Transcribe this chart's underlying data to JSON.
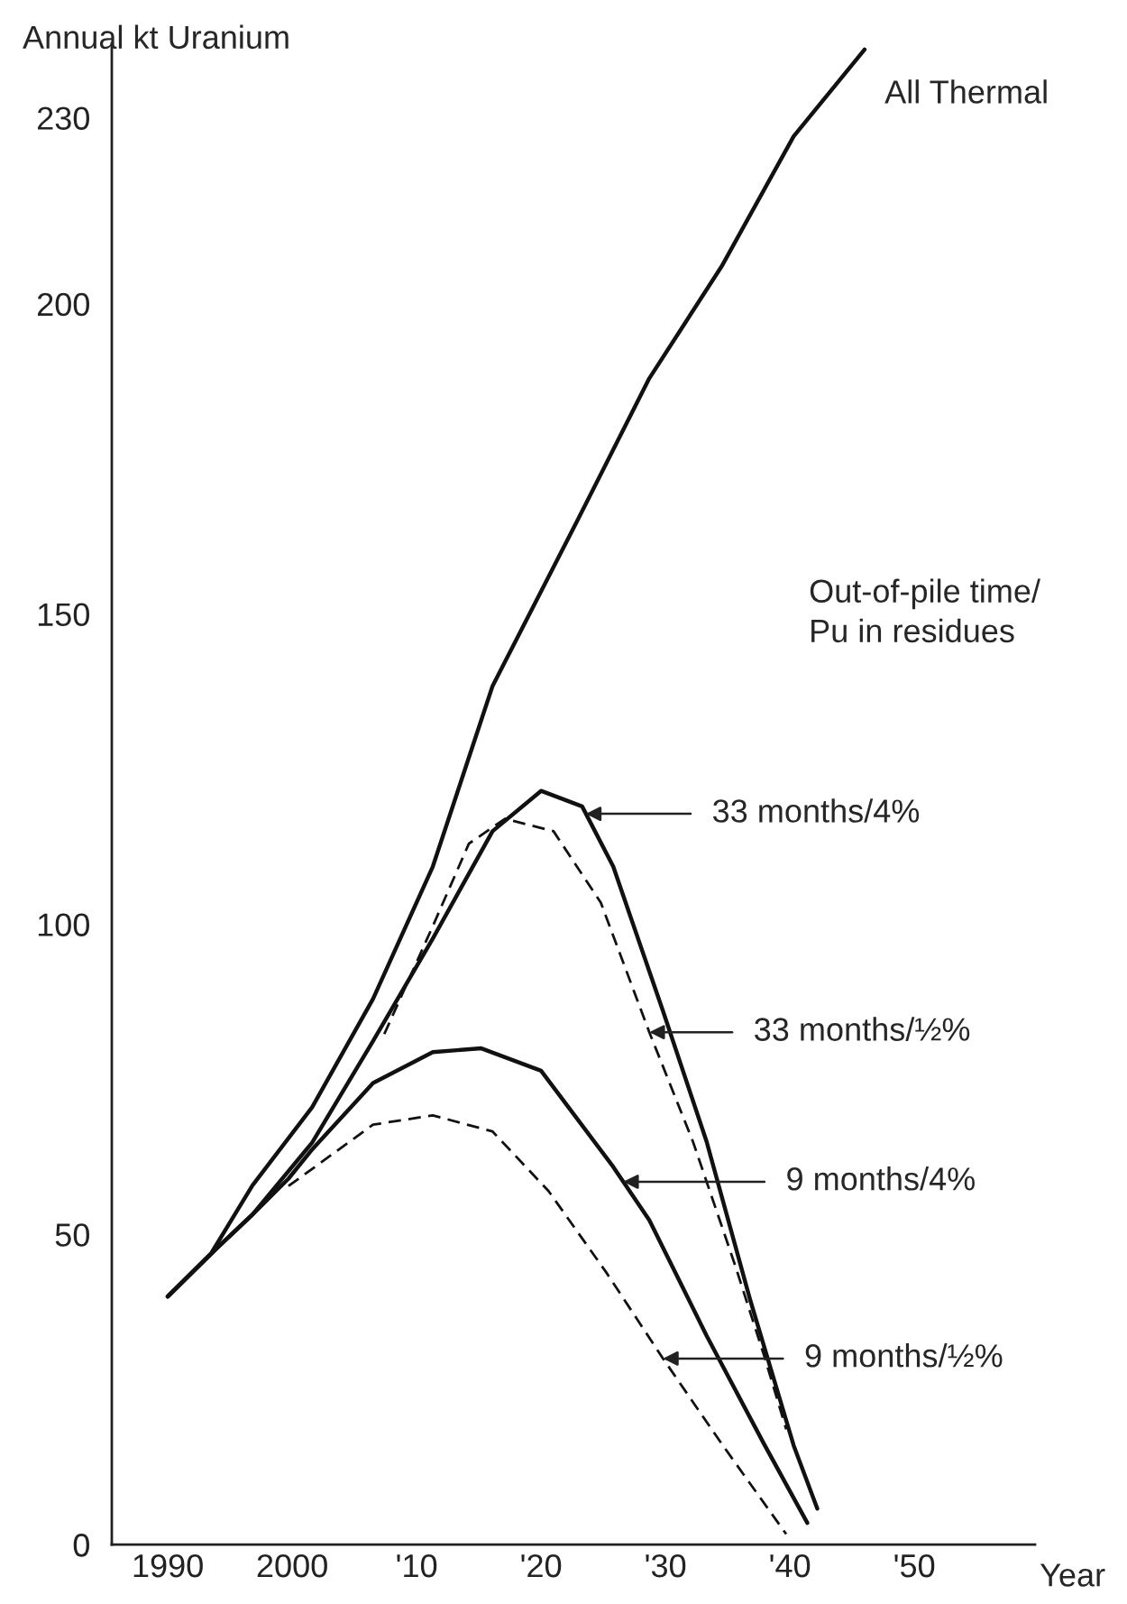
{
  "chart_data": {
    "type": "line",
    "ylabel": "Annual kt Uranium",
    "xlabel": "Year",
    "xlim": [
      1985.5,
      2059.7
    ],
    "ylim": [
      0,
      242
    ],
    "xticks": [
      1990,
      2000,
      {
        "value": 2010,
        "label": "'10"
      },
      {
        "value": 2020,
        "label": "'20"
      },
      {
        "value": 2030,
        "label": "'30"
      },
      {
        "value": 2040,
        "label": "'40"
      },
      {
        "value": 2050,
        "label": "'50"
      }
    ],
    "yticks": [
      0,
      50,
      100,
      150,
      200,
      230
    ],
    "grid": false,
    "legend": false,
    "series": [
      {
        "color": "#111111",
        "line_style": "solid",
        "x": [
          1990,
          1993.5,
          1996.8,
          2001.6,
          2006.5,
          2011.3,
          2016.1,
          2022.9,
          2028.7,
          2034.5,
          2040.3,
          2046
        ],
        "values": [
          40,
          47,
          57.9,
          70.5,
          88,
          109.3,
          138.4,
          165,
          188,
          206,
          227,
          241
        ]
      },
      {
        "color": "#111111",
        "line_style": "solid",
        "x": [
          1990,
          1993.9,
          1996.8,
          2001.6,
          2006.5,
          2011.3,
          2016.1,
          2020,
          2023.3,
          2025.8,
          2029.8,
          2033.3,
          2036.8,
          2040.3,
          2042.2
        ],
        "values": [
          40,
          47.7,
          53.2,
          64.8,
          81.2,
          97.7,
          115,
          121.5,
          119,
          109.3,
          86,
          65,
          39.5,
          16,
          5.8
        ]
      },
      {
        "color": "#111111",
        "line_style": "dashed",
        "x": [
          2007.4,
          2011.3,
          2014.2,
          2017.1,
          2021,
          2024.8,
          2028.7,
          2032.2,
          2035.6,
          2038,
          2039.7
        ],
        "values": [
          82.3,
          99.7,
          113,
          117,
          115,
          103.5,
          82.6,
          65,
          45,
          30,
          18.6
        ]
      },
      {
        "color": "#111111",
        "line_style": "solid",
        "x": [
          1990,
          1993.9,
          1996.8,
          1999.7,
          2001.6,
          2006.5,
          2011.3,
          2015.2,
          2020,
          2025.8,
          2028.7,
          2033.3,
          2037.9,
          2041.4
        ],
        "values": [
          40,
          47.7,
          53.2,
          59,
          63.7,
          74.4,
          79.4,
          80,
          76.4,
          60.9,
          52.3,
          33.7,
          16.3,
          3.5
        ]
      },
      {
        "color": "#111111",
        "line_style": "dashed",
        "x": [
          1999.7,
          2006.5,
          2011.3,
          2016.1,
          2020.6,
          2025.2,
          2029.8,
          2034.5,
          2039.7
        ],
        "values": [
          57.8,
          67.7,
          69.2,
          66.6,
          57,
          44,
          30,
          16.3,
          1.7
        ]
      }
    ],
    "annotations": [
      {
        "text": "All Thermal",
        "x": 2046,
        "y": 241
      },
      "Out-of-pile time/\nPu in residues",
      {
        "text": "33 months/4%",
        "x": 2023.6,
        "y": 117.8
      },
      {
        "text": "33 months/½%",
        "x": 2028.7,
        "y": 82.6
      },
      {
        "text": "9 months/4%",
        "x": 2026.6,
        "y": 58.5
      },
      {
        "text": "9 months/½%",
        "x": 2029.8,
        "y": 30
      }
    ]
  }
}
